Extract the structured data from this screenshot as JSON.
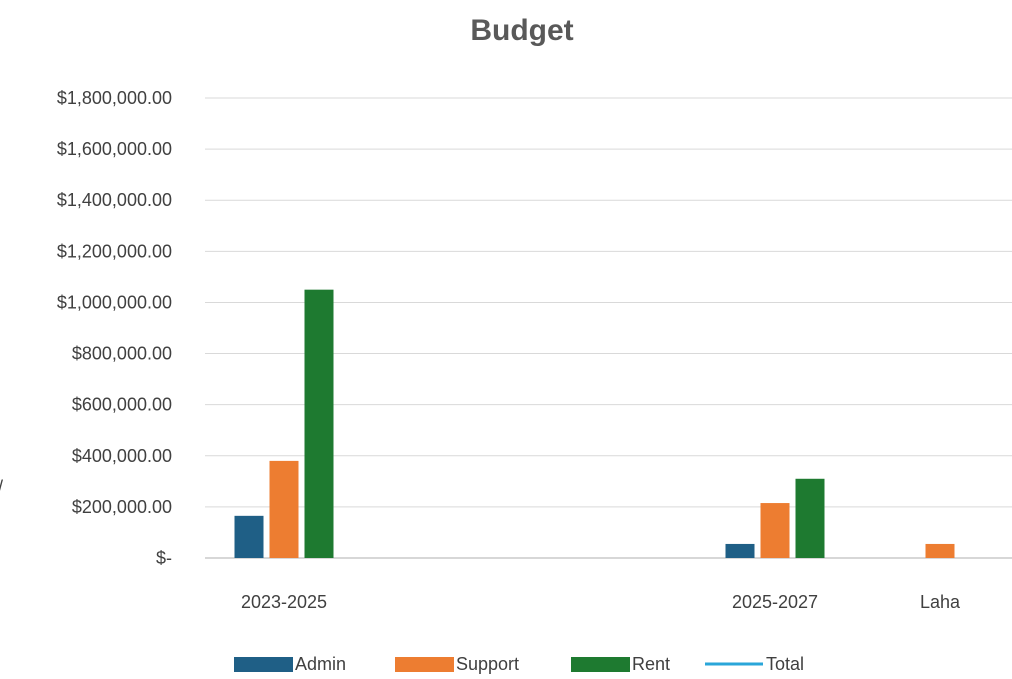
{
  "chart_data": {
    "type": "bar",
    "title": "Budget",
    "categories": [
      "2023-2025",
      "",
      "",
      "2025-2027",
      "Laha"
    ],
    "series": [
      {
        "name": "Admin",
        "color": "#1f5f86",
        "values": [
          165000,
          null,
          null,
          55000,
          null
        ]
      },
      {
        "name": "Support",
        "color": "#ed7d31",
        "values": [
          380000,
          null,
          null,
          215000,
          55000
        ]
      },
      {
        "name": "Rent",
        "color": "#1e7a30",
        "values": [
          1050000,
          null,
          null,
          310000,
          null
        ]
      },
      {
        "name": "Total",
        "color": "#2aa6d9",
        "type": "line",
        "values": [
          null,
          null,
          null,
          null,
          null
        ]
      }
    ],
    "ylim": [
      0,
      1800000
    ],
    "yticks": [
      {
        "value": 0,
        "label": "$-"
      },
      {
        "value": 200000,
        "label": "$200,000.00"
      },
      {
        "value": 400000,
        "label": "$400,000.00"
      },
      {
        "value": 600000,
        "label": "$600,000.00"
      },
      {
        "value": 800000,
        "label": "$800,000.00"
      },
      {
        "value": 1000000,
        "label": "$1,000,000.00"
      },
      {
        "value": 1200000,
        "label": "$1,200,000.00"
      },
      {
        "value": 1400000,
        "label": "$1,400,000.00"
      },
      {
        "value": 1600000,
        "label": "$1,600,000.00"
      },
      {
        "value": 1800000,
        "label": "$1,800,000.00"
      }
    ],
    "grid": true,
    "legend_position": "bottom"
  }
}
